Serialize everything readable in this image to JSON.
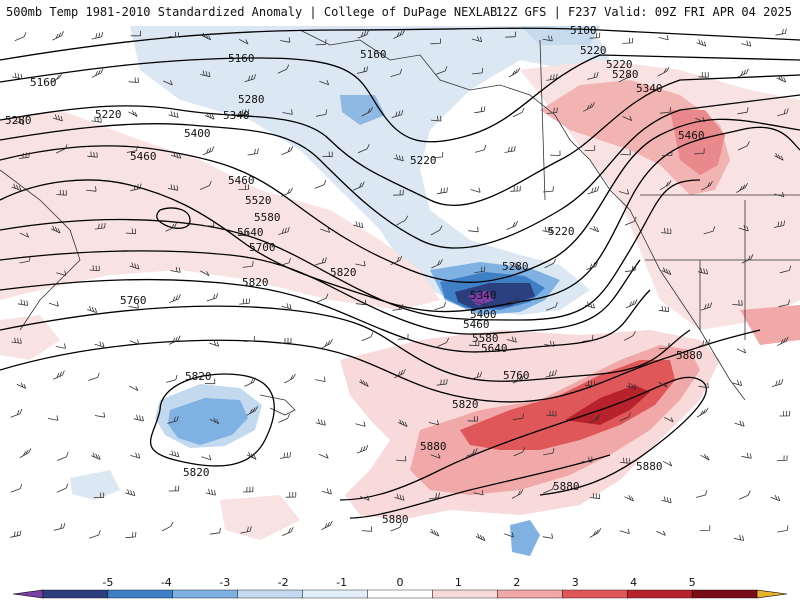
{
  "header": {
    "left": "500mb Temp 1981-2010 Standardized Anomaly | College of DuPage NEXLAB",
    "right": "12Z GFS | F237 Valid: 09Z FRI APR 04 2025"
  },
  "contour_labels": [
    "5100",
    "5160",
    "5160",
    "5160",
    "5220",
    "5220",
    "5220",
    "5220",
    "5220",
    "5280",
    "5280",
    "5280",
    "5280",
    "5340",
    "5340",
    "5340",
    "5400",
    "5400",
    "5460",
    "5460",
    "5460",
    "5460",
    "5520",
    "5580",
    "5580",
    "5640",
    "5640",
    "5700",
    "5760",
    "5760",
    "5820",
    "5820",
    "5820",
    "5820",
    "5820",
    "5880",
    "5880",
    "5880",
    "5880",
    "5880"
  ],
  "colorbar": {
    "ticks": [
      "-5",
      "-4",
      "-3",
      "-2",
      "-1",
      "0",
      "1",
      "2",
      "3",
      "4",
      "5"
    ],
    "colors": [
      "#7b3fa8",
      "#2b3f7e",
      "#3f7fc6",
      "#7fb1e2",
      "#c3d9ef",
      "#e4eef8",
      "#ffffff",
      "#f9dada",
      "#f0a8a8",
      "#e0575a",
      "#b8222c",
      "#7a0c18",
      "#e8b12a"
    ]
  }
}
